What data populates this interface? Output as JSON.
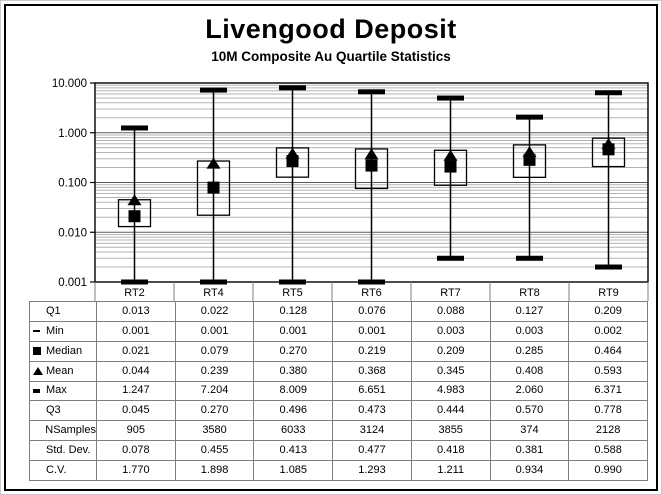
{
  "chart_data": {
    "type": "box",
    "title": "Livengood Deposit",
    "subtitle": "10M Composite Au Quartile Statistics",
    "y_scale": "log",
    "ylim": [
      0.001,
      10
    ],
    "ytick_labels": [
      "10.000",
      "1.000",
      "0.100",
      "0.010",
      "0.001"
    ],
    "grid": "log-minor-and-major",
    "categories": [
      "RT2",
      "RT4",
      "RT5",
      "RT6",
      "RT7",
      "RT8",
      "RT9"
    ],
    "series": [
      {
        "name": "Q1",
        "values": [
          0.013,
          0.022,
          0.128,
          0.076,
          0.088,
          0.127,
          0.209
        ]
      },
      {
        "name": "Min",
        "values": [
          0.001,
          0.001,
          0.001,
          0.001,
          0.003,
          0.003,
          0.002
        ]
      },
      {
        "name": "Median",
        "values": [
          0.021,
          0.079,
          0.27,
          0.219,
          0.209,
          0.285,
          0.464
        ]
      },
      {
        "name": "Mean",
        "values": [
          0.044,
          0.239,
          0.38,
          0.368,
          0.345,
          0.408,
          0.593
        ]
      },
      {
        "name": "Max",
        "values": [
          1.247,
          7.204,
          8.009,
          6.651,
          4.983,
          2.06,
          6.371
        ]
      },
      {
        "name": "Q3",
        "values": [
          0.045,
          0.27,
          0.496,
          0.473,
          0.444,
          0.57,
          0.778
        ]
      },
      {
        "name": "NSamples",
        "values": [
          905,
          3580,
          6033,
          3124,
          3855,
          374,
          2128
        ]
      },
      {
        "name": "Std. Dev.",
        "values": [
          0.078,
          0.455,
          0.413,
          0.477,
          0.418,
          0.381,
          0.588
        ]
      },
      {
        "name": "C.V.",
        "values": [
          1.77,
          1.898,
          1.085,
          1.293,
          1.211,
          0.934,
          0.99
        ]
      }
    ]
  },
  "table": {
    "rows": [
      {
        "label": "Q1",
        "marker": "none",
        "values": [
          "0.013",
          "0.022",
          "0.128",
          "0.076",
          "0.088",
          "0.127",
          "0.209"
        ]
      },
      {
        "label": "Min",
        "marker": "dash",
        "values": [
          "0.001",
          "0.001",
          "0.001",
          "0.001",
          "0.003",
          "0.003",
          "0.002"
        ]
      },
      {
        "label": "Median",
        "marker": "square",
        "values": [
          "0.021",
          "0.079",
          "0.270",
          "0.219",
          "0.209",
          "0.285",
          "0.464"
        ]
      },
      {
        "label": "Mean",
        "marker": "triangle",
        "values": [
          "0.044",
          "0.239",
          "0.380",
          "0.368",
          "0.345",
          "0.408",
          "0.593"
        ]
      },
      {
        "label": "Max",
        "marker": "thick-dash",
        "values": [
          "1.247",
          "7.204",
          "8.009",
          "6.651",
          "4.983",
          "2.060",
          "6.371"
        ]
      },
      {
        "label": "Q3",
        "marker": "none",
        "values": [
          "0.045",
          "0.270",
          "0.496",
          "0.473",
          "0.444",
          "0.570",
          "0.778"
        ]
      },
      {
        "label": "NSamples",
        "marker": "none",
        "values": [
          "905",
          "3580",
          "6033",
          "3124",
          "3855",
          "374",
          "2128"
        ]
      },
      {
        "label": "Std. Dev.",
        "marker": "none",
        "values": [
          "0.078",
          "0.455",
          "0.413",
          "0.477",
          "0.418",
          "0.381",
          "0.588"
        ]
      },
      {
        "label": "C.V.",
        "marker": "none",
        "values": [
          "1.770",
          "1.898",
          "1.085",
          "1.293",
          "1.211",
          "0.934",
          "0.990"
        ]
      }
    ]
  },
  "colors": {
    "ink": "#000000",
    "grid_minor": "#b3b3b3",
    "grid_major": "#595959",
    "table_border": "#7f7f7f",
    "page_border": "#000000"
  }
}
